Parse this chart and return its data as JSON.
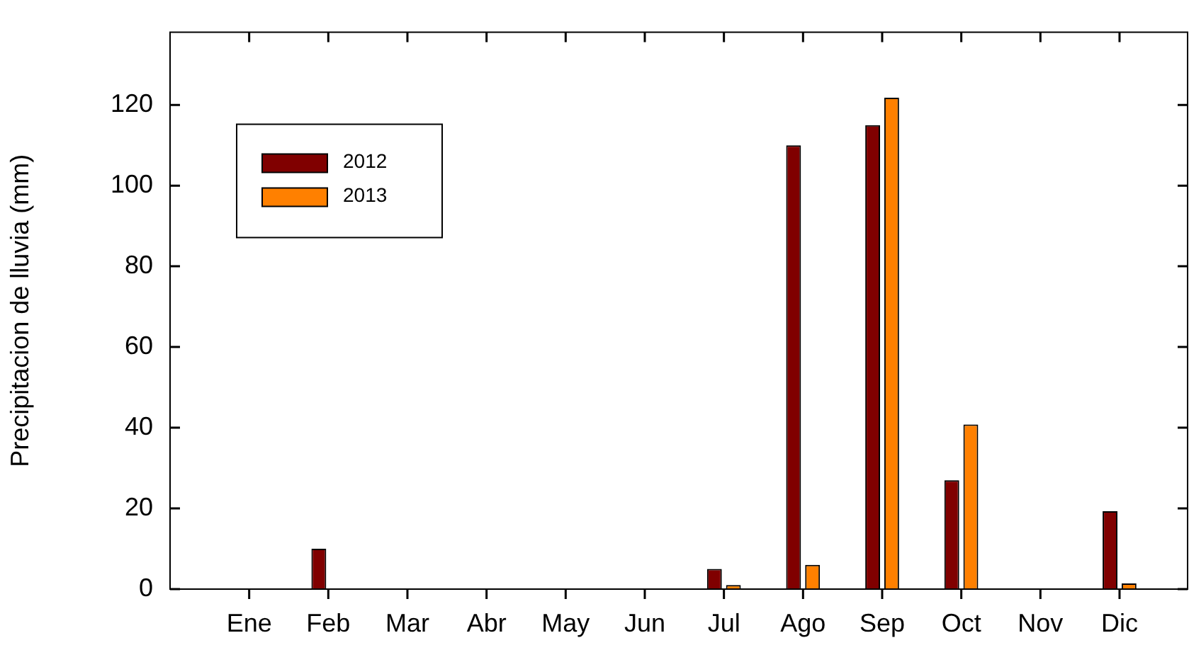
{
  "chart_data": {
    "type": "bar",
    "ylabel": "Precipitacion de lluvia (mm)",
    "categories": [
      "Ene",
      "Feb",
      "Mar",
      "Abr",
      "May",
      "Jun",
      "Jul",
      "Ago",
      "Sep",
      "Oct",
      "Nov",
      "Dic"
    ],
    "series": [
      {
        "name": "2012",
        "color": "#800000",
        "values": [
          0,
          10,
          0,
          0,
          0,
          0,
          5,
          110,
          115,
          27,
          0,
          19.3
        ]
      },
      {
        "name": "2013",
        "color": "#ff8000",
        "values": [
          0,
          0,
          0,
          0,
          0,
          0,
          1,
          6,
          121.8,
          40.8,
          0,
          1.4
        ]
      }
    ],
    "ylim": [
      0,
      138
    ],
    "yticks": [
      0,
      20,
      40,
      60,
      80,
      100,
      120
    ],
    "grid": false,
    "legend": "top left"
  }
}
